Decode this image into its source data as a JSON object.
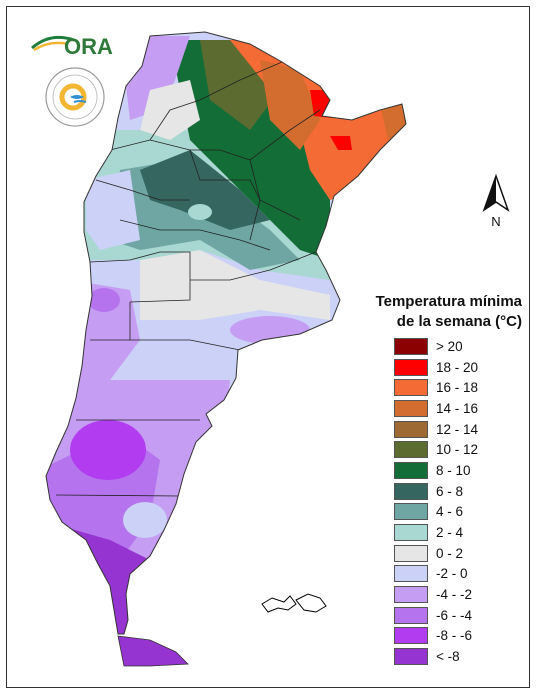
{
  "legend": {
    "title_line1": "Temperatura mínima",
    "title_line2": "de la semana (°C)",
    "items": [
      {
        "label": "> 20",
        "color": "#8b0000"
      },
      {
        "label": "18 - 20",
        "color": "#ff0000"
      },
      {
        "label": "16 - 18",
        "color": "#f46b35"
      },
      {
        "label": "14 - 16",
        "color": "#d26c2f"
      },
      {
        "label": "12 - 14",
        "color": "#9e6a34"
      },
      {
        "label": "10 - 12",
        "color": "#5c6b30"
      },
      {
        "label": "8 - 10",
        "color": "#136d36"
      },
      {
        "label": "6 - 8",
        "color": "#356660"
      },
      {
        "label": "4 - 6",
        "color": "#6fa5a3"
      },
      {
        "label": "2 - 4",
        "color": "#a9d7d1"
      },
      {
        "label": "0 - 2",
        "color": "#e6e6e6"
      },
      {
        "label": "-2 - 0",
        "color": "#cbd1f7"
      },
      {
        "label": "-4 - -2",
        "color": "#c59df2"
      },
      {
        "label": "-6 - -4",
        "color": "#b574ee"
      },
      {
        "label": "-8 - -6",
        "color": "#b13cf0"
      },
      {
        "label": "< -8",
        "color": "#9534d1"
      }
    ]
  },
  "north_arrow": {
    "label": "N"
  },
  "logos": {
    "ora_text": "ORA"
  }
}
